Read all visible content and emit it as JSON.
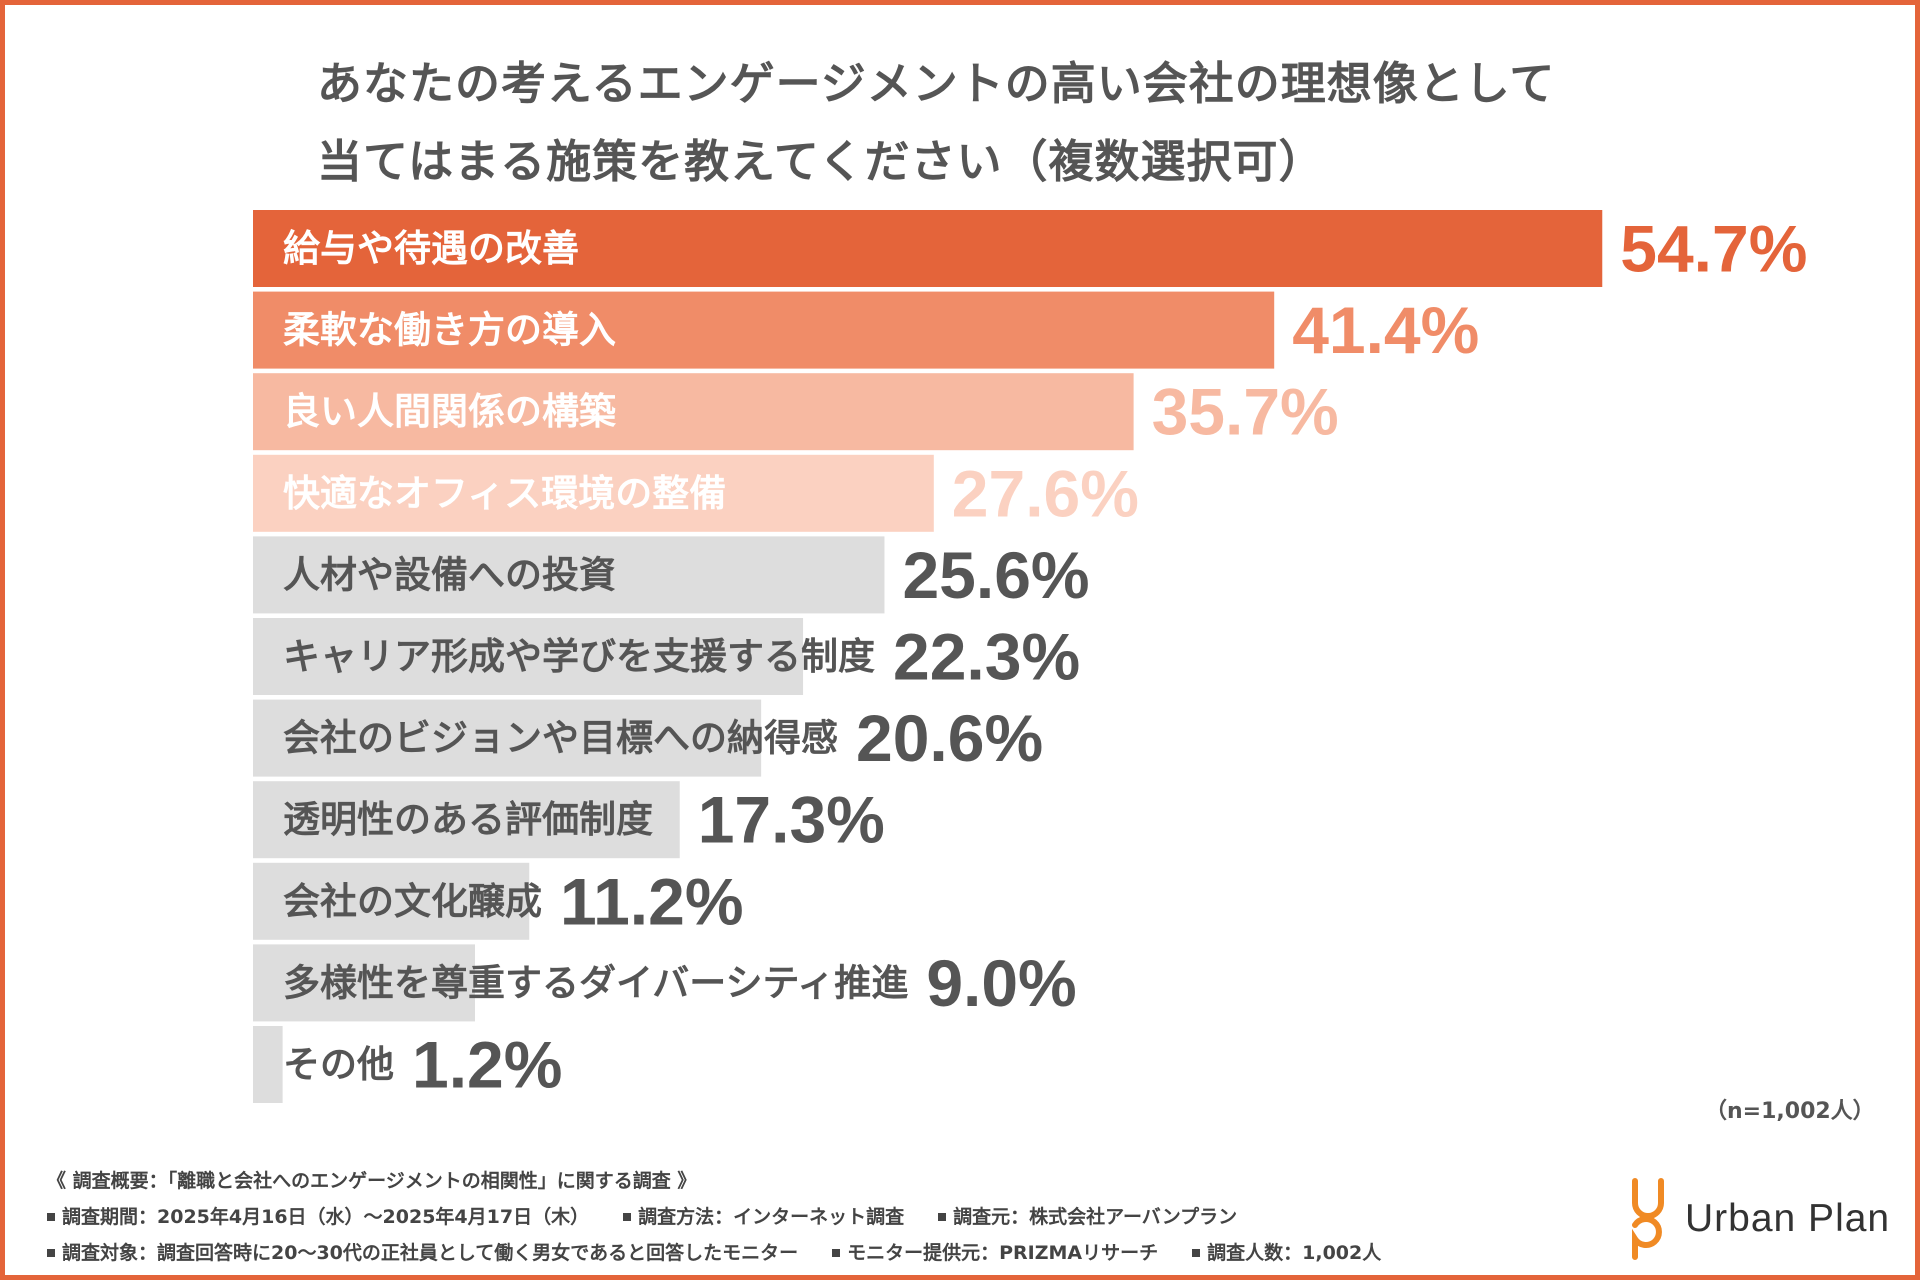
{
  "title": {
    "line1": "あなたの考えるエンゲージメントの高い会社の理想像として",
    "line2": "当てはまる施策を教えてください（複数選択可）"
  },
  "chart_data": {
    "type": "bar",
    "orientation": "horizontal",
    "title": "あなたの考えるエンゲージメントの高い会社の理想像として当てはまる施策を教えてください（複数選択可）",
    "xlabel": "",
    "ylabel": "",
    "xlim": [
      0,
      60
    ],
    "unit": "%",
    "categories": [
      "給与や待遇の改善",
      "柔軟な働き方の導入",
      "良い人間関係の構築",
      "快適なオフィス環境の整備",
      "人材や設備への投資",
      "キャリア形成や学びを支援する制度",
      "会社のビジョンや目標への納得感",
      "透明性のある評価制度",
      "会社の文化醸成",
      "多様性を尊重するダイバーシティ推進",
      "その他"
    ],
    "values": [
      54.7,
      41.4,
      35.7,
      27.6,
      25.6,
      22.3,
      20.6,
      17.3,
      11.2,
      9.0,
      1.2
    ],
    "value_labels": [
      "54.7%",
      "41.4%",
      "35.7%",
      "27.6%",
      "25.6%",
      "22.3%",
      "20.6%",
      "17.3%",
      "11.2%",
      "9.0%",
      "1.2%"
    ],
    "bar_colors": [
      "#e4643a",
      "#f08c68",
      "#f7b9a1",
      "#fbd1c1",
      "#dddddd",
      "#dddddd",
      "#dddddd",
      "#dddddd",
      "#dddddd",
      "#dddddd",
      "#dddddd"
    ],
    "label_colors": [
      "#ffffff",
      "#ffffff",
      "#ffffff",
      "#ffffff",
      "#555555",
      "#555555",
      "#555555",
      "#555555",
      "#555555",
      "#555555",
      "#555555"
    ],
    "value_colors": [
      "#e4643a",
      "#f08c68",
      "#f7b9a1",
      "#fbd1c1",
      "#555555",
      "#555555",
      "#555555",
      "#555555",
      "#555555",
      "#555555",
      "#555555"
    ]
  },
  "sample_size": "（n=1,002人）",
  "footnote": {
    "survey_title": "《 調査概要：「離職と会社へのエンゲージメントの相関性」に関する調査 》",
    "row2": [
      "調査期間：2025年4月16日（水）～2025年4月17日（木）",
      "調査方法：インターネット調査",
      "調査元：株式会社アーバンプラン"
    ],
    "row3": [
      "調査対象：調査回答時に20～30代の正社員として働く男女であると回答したモニター",
      "モニター提供元：PRIZMAリサーチ",
      "調査人数：1,002人"
    ]
  },
  "brand": {
    "name": "Urban Plan",
    "accent_color": "#f08a24"
  }
}
